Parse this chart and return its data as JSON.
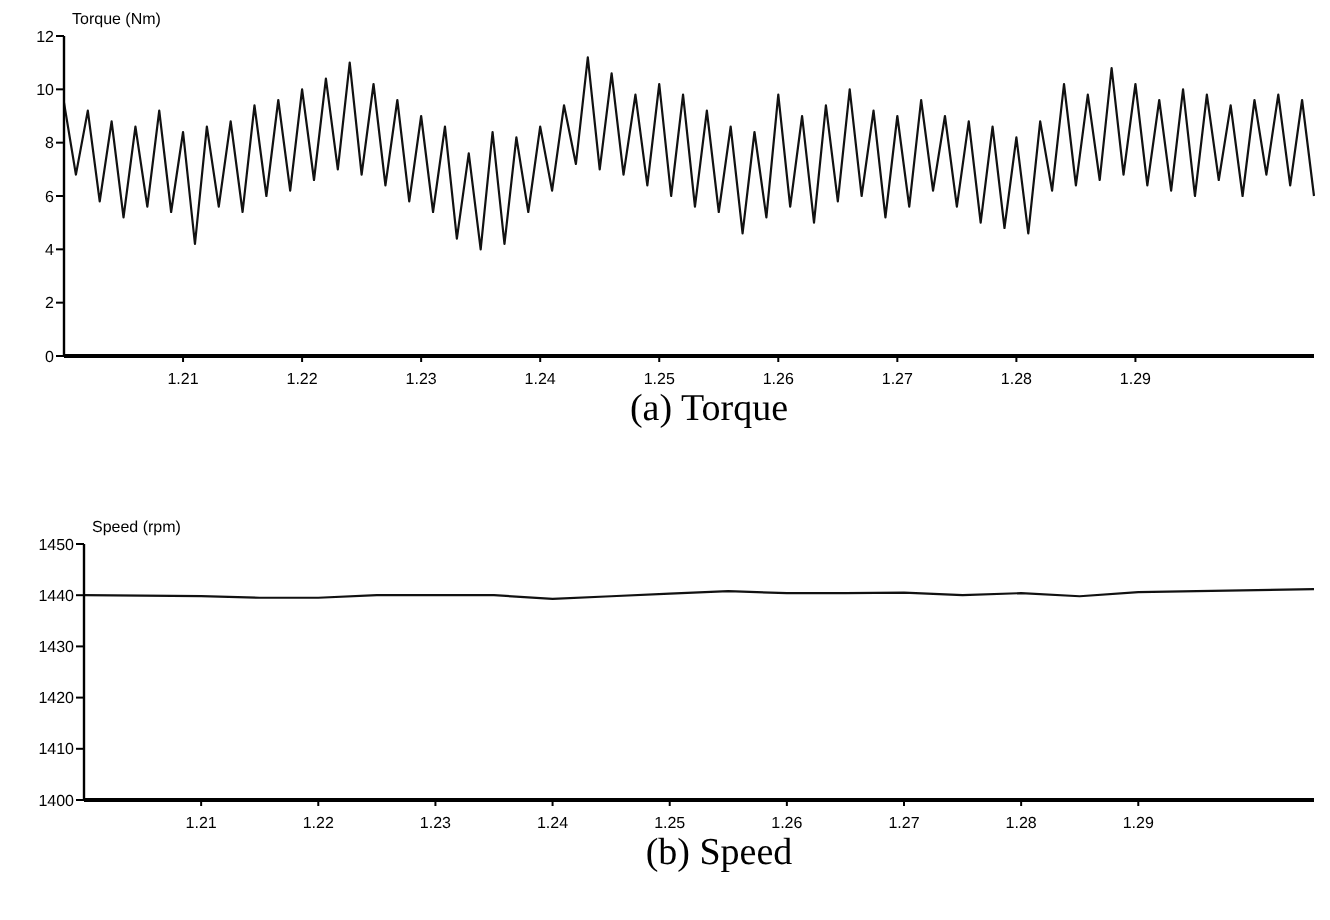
{
  "chart_data": [
    {
      "type": "line",
      "title": "(a) Torque",
      "ylabel": "Torque (Nm)",
      "xlim": [
        1.2,
        1.305
      ],
      "ylim": [
        0,
        12
      ],
      "xticks": [
        1.21,
        1.22,
        1.23,
        1.24,
        1.25,
        1.26,
        1.27,
        1.28,
        1.29
      ],
      "yticks": [
        0,
        2,
        4,
        6,
        8,
        10,
        12
      ],
      "grid": false,
      "marker": "none",
      "line_style": "solid",
      "series": [
        {
          "color": "#111111",
          "x": [
            1.2,
            1.201,
            1.202,
            1.203,
            1.204,
            1.205,
            1.206,
            1.207,
            1.208,
            1.209,
            1.21,
            1.211,
            1.212,
            1.213,
            1.214,
            1.215,
            1.216,
            1.217,
            1.218,
            1.219,
            1.22,
            1.221,
            1.222,
            1.223,
            1.224,
            1.225,
            1.226,
            1.227,
            1.228,
            1.229,
            1.23,
            1.231,
            1.232,
            1.233,
            1.234,
            1.235,
            1.236,
            1.237,
            1.238,
            1.239,
            1.24,
            1.241,
            1.242,
            1.243,
            1.244,
            1.245,
            1.246,
            1.247,
            1.248,
            1.249,
            1.25,
            1.251,
            1.252,
            1.253,
            1.254,
            1.255,
            1.256,
            1.257,
            1.258,
            1.259,
            1.26,
            1.261,
            1.262,
            1.263,
            1.264,
            1.265,
            1.266,
            1.267,
            1.268,
            1.269,
            1.27,
            1.271,
            1.272,
            1.273,
            1.274,
            1.275,
            1.276,
            1.277,
            1.278,
            1.279,
            1.28,
            1.281,
            1.282,
            1.283,
            1.284,
            1.285,
            1.286,
            1.287,
            1.288,
            1.289,
            1.29,
            1.291,
            1.292,
            1.293,
            1.294,
            1.295,
            1.296,
            1.297,
            1.298,
            1.299,
            1.3,
            1.301,
            1.302,
            1.303,
            1.304,
            1.305
          ],
          "values": [
            9.5,
            6.8,
            9.2,
            5.8,
            8.8,
            5.2,
            8.6,
            5.6,
            9.2,
            5.4,
            8.4,
            4.2,
            8.6,
            5.6,
            8.8,
            5.4,
            9.4,
            6.0,
            9.6,
            6.2,
            10.0,
            6.6,
            10.4,
            7.0,
            11.0,
            6.8,
            10.2,
            6.4,
            9.6,
            5.8,
            9.0,
            5.4,
            8.6,
            4.4,
            7.6,
            4.0,
            8.4,
            4.2,
            8.2,
            5.4,
            8.6,
            6.2,
            9.4,
            7.2,
            11.2,
            7.0,
            10.6,
            6.8,
            9.8,
            6.4,
            10.2,
            6.0,
            9.8,
            5.6,
            9.2,
            5.4,
            8.6,
            4.6,
            8.4,
            5.2,
            9.8,
            5.6,
            9.0,
            5.0,
            9.4,
            5.8,
            10.0,
            6.0,
            9.2,
            5.2,
            9.0,
            5.6,
            9.6,
            6.2,
            9.0,
            5.6,
            8.8,
            5.0,
            8.6,
            4.8,
            8.2,
            4.6,
            8.8,
            6.2,
            10.2,
            6.4,
            9.8,
            6.6,
            10.8,
            6.8,
            10.2,
            6.4,
            9.6,
            6.2,
            10.0,
            6.0,
            9.8,
            6.6,
            9.4,
            6.0,
            9.6,
            6.8,
            9.8,
            6.4,
            9.6,
            6.0
          ]
        }
      ]
    },
    {
      "type": "line",
      "title": "(b) Speed",
      "ylabel": "Speed (rpm)",
      "xlim": [
        1.2,
        1.305
      ],
      "ylim": [
        1400,
        1450
      ],
      "xticks": [
        1.21,
        1.22,
        1.23,
        1.24,
        1.25,
        1.26,
        1.27,
        1.28,
        1.29
      ],
      "yticks": [
        1400,
        1410,
        1420,
        1430,
        1440,
        1450
      ],
      "grid": false,
      "marker": "none",
      "line_style": "solid",
      "series": [
        {
          "color": "#111111",
          "x": [
            1.2,
            1.21,
            1.215,
            1.22,
            1.225,
            1.23,
            1.235,
            1.24,
            1.245,
            1.25,
            1.255,
            1.26,
            1.265,
            1.27,
            1.275,
            1.28,
            1.285,
            1.29,
            1.295,
            1.305
          ],
          "values": [
            1440,
            1439.8,
            1439.5,
            1439.5,
            1440,
            1440,
            1440,
            1439.3,
            1439.8,
            1440.3,
            1440.8,
            1440.4,
            1440.4,
            1440.5,
            1440,
            1440.4,
            1439.8,
            1440.6,
            1440.8,
            1441.2
          ]
        }
      ]
    }
  ]
}
